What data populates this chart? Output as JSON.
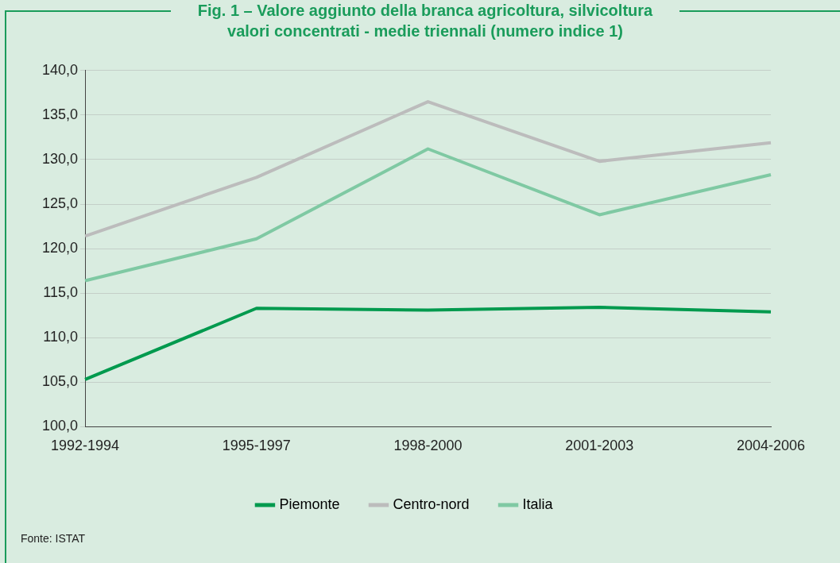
{
  "chart_data": {
    "type": "line",
    "title": "Fig. 1 – Valore aggiunto della branca agricoltura, silvicoltura\nvalori concentrati - medie triennali (numero indice 1)",
    "categories": [
      "1992-1994",
      "1995-1997",
      "1998-2000",
      "2001-2003",
      "2004-2006"
    ],
    "series": [
      {
        "name": "Piemonte",
        "color": "#009a4e",
        "values": [
          105.3,
          113.3,
          113.1,
          113.4,
          112.9
        ]
      },
      {
        "name": "Centro-nord",
        "color": "#bcbcbc",
        "values": [
          121.4,
          128.0,
          136.5,
          129.8,
          131.9
        ]
      },
      {
        "name": "Italia",
        "color": "#7fc9a3",
        "values": [
          116.4,
          121.1,
          131.2,
          123.8,
          128.3
        ]
      }
    ],
    "ylim": [
      100,
      140
    ],
    "yticks": [
      {
        "value": 100,
        "label": "100,0"
      },
      {
        "value": 105,
        "label": "105,0"
      },
      {
        "value": 110,
        "label": "110,0"
      },
      {
        "value": 115,
        "label": "115,0"
      },
      {
        "value": 120,
        "label": "120,0"
      },
      {
        "value": 125,
        "label": "125,0"
      },
      {
        "value": 130,
        "label": "130,0"
      },
      {
        "value": 135,
        "label": "135,0"
      },
      {
        "value": 140,
        "label": "140,0"
      }
    ],
    "grid": "y",
    "legend": "bottom",
    "marker": "none",
    "line_style": "solid",
    "annotations": [
      "Fonte: ISTAT"
    ]
  }
}
